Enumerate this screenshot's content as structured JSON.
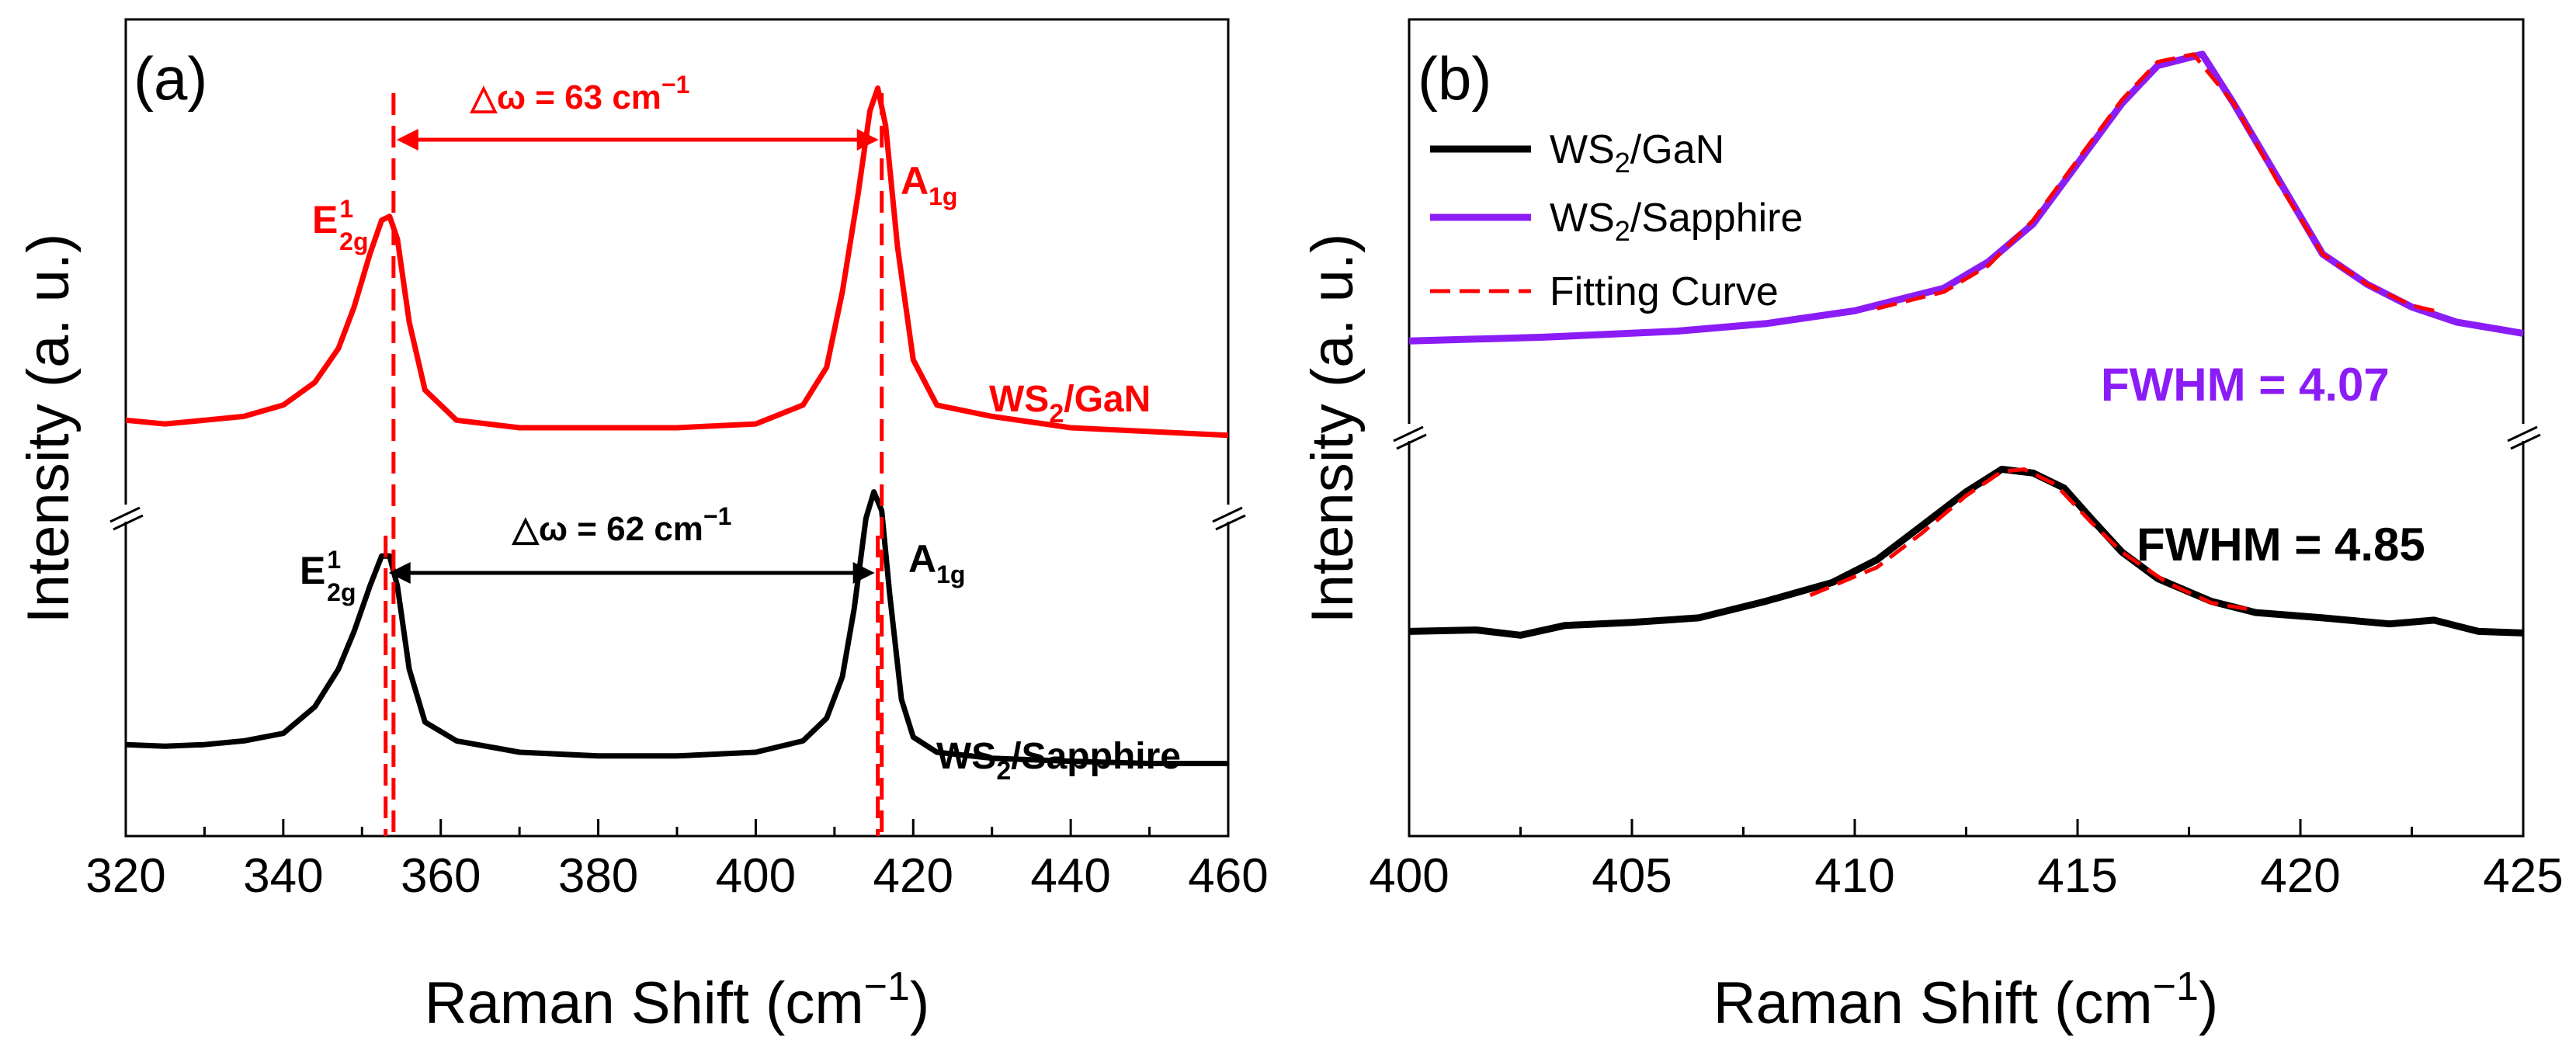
{
  "colors": {
    "gan": "#ff0000",
    "sapphire_a": "#000000",
    "gan_b": "#000000",
    "sapphire_b": "#8b1cf6",
    "fit": "#ff0000",
    "axis": "#000000"
  },
  "chart_data": [
    {
      "panel_label": "(a)",
      "type": "line",
      "xlabel": "Raman Shift (cm",
      "xlabel_sup": "−1",
      "xlabel_close": ")",
      "ylabel": "Intensity (a. u.)",
      "xlim": [
        320,
        460
      ],
      "ylim": [
        0,
        10
      ],
      "xticks": [
        "320",
        "340",
        "360",
        "380",
        "400",
        "420",
        "440",
        "460"
      ],
      "axis_break_y": 4.4,
      "series": [
        {
          "name": "WS2/GaN",
          "label_main": "WS",
          "label_sub": "2",
          "label_tail": "/GaN",
          "color_key": "gan",
          "x": [
            320,
            325,
            330,
            335,
            340,
            344,
            347,
            349,
            351,
            352.5,
            353.5,
            354.5,
            356,
            358,
            362,
            370,
            380,
            390,
            400,
            406,
            409,
            411,
            413,
            414.5,
            415.5,
            416.5,
            418,
            420,
            423,
            430,
            440,
            450,
            460
          ],
          "y": [
            5.1,
            5.05,
            5.1,
            5.15,
            5.3,
            5.6,
            6.05,
            6.6,
            7.3,
            7.75,
            7.8,
            7.5,
            6.4,
            5.5,
            5.1,
            5.0,
            5.0,
            5.0,
            5.05,
            5.3,
            5.8,
            6.8,
            8.1,
            9.2,
            9.5,
            9.0,
            7.4,
            5.9,
            5.3,
            5.15,
            5.0,
            4.95,
            4.9
          ]
        },
        {
          "name": "WS2/Sapphire",
          "label_main": "WS",
          "label_sub": "2",
          "label_tail": "/Sapphire",
          "color_key": "sapphire_a",
          "x": [
            320,
            325,
            330,
            335,
            340,
            344,
            347,
            349,
            351,
            352.5,
            353.5,
            354.5,
            356,
            358,
            362,
            370,
            380,
            390,
            400,
            406,
            409,
            411,
            412.5,
            414,
            415,
            416,
            417,
            418.5,
            420,
            423,
            430,
            440,
            450,
            460
          ],
          "y": [
            0.8,
            0.78,
            0.8,
            0.85,
            0.95,
            1.3,
            1.8,
            2.3,
            2.9,
            3.3,
            3.3,
            2.9,
            1.8,
            1.1,
            0.85,
            0.7,
            0.65,
            0.65,
            0.7,
            0.85,
            1.15,
            1.7,
            2.6,
            3.8,
            4.15,
            3.9,
            2.8,
            1.4,
            0.9,
            0.7,
            0.62,
            0.58,
            0.55,
            0.55
          ]
        }
      ],
      "annotations": {
        "gan": {
          "e_peak_x": 354,
          "a_peak_x": 416,
          "e_main": "E",
          "e_sup": "1",
          "e_sub": "2g",
          "a_main": "A",
          "a_sub": "1g",
          "delta": "△ω = 63 cm",
          "delta_sup": "−1"
        },
        "sapphire": {
          "e_peak_x": 353,
          "a_peak_x": 415.5,
          "e_main": "E",
          "e_sup": "1",
          "e_sub": "2g",
          "a_main": "A",
          "a_sub": "1g",
          "delta": "△ω = 62 cm",
          "delta_sup": "−1"
        }
      }
    },
    {
      "panel_label": "(b)",
      "type": "line",
      "xlabel": "Raman Shift (cm",
      "xlabel_sup": "−1",
      "xlabel_close": ")",
      "ylabel": "Intensity (a. u.)",
      "xlim": [
        400,
        425
      ],
      "ylim": [
        0,
        10
      ],
      "xticks": [
        "400",
        "405",
        "410",
        "415",
        "420",
        "425"
      ],
      "axis_break_y": 5.3,
      "legend": [
        {
          "main": "WS",
          "sub": "2",
          "tail": "/GaN",
          "color_key": "gan_b",
          "style": "solid"
        },
        {
          "main": "WS",
          "sub": "2",
          "tail": "/Sapphire",
          "color_key": "sapphire_b",
          "style": "solid"
        },
        {
          "main": "Fitting Curve",
          "sub": "",
          "tail": "",
          "color_key": "fit",
          "style": "dashed"
        }
      ],
      "fwhm_sapphire": "FWHM = 4.07",
      "fwhm_gan": "FWHM = 4.85",
      "series": [
        {
          "name": "WS2/Sapphire",
          "color_key": "sapphire_b",
          "x": [
            400,
            403,
            406,
            408,
            410,
            412,
            413,
            414,
            415,
            416,
            416.8,
            417.8,
            418.5,
            419.5,
            420.5,
            421.5,
            422.5,
            423.5,
            424.5,
            425
          ],
          "y": [
            6.15,
            6.2,
            6.28,
            6.38,
            6.55,
            6.85,
            7.2,
            7.7,
            8.5,
            9.3,
            9.8,
            9.95,
            9.3,
            8.3,
            7.3,
            6.9,
            6.6,
            6.4,
            6.3,
            6.25
          ]
        },
        {
          "name": "WS2/GaN",
          "color_key": "gan_b",
          "x": [
            400,
            401.5,
            402.5,
            403.5,
            405,
            406.5,
            408,
            409.5,
            410.5,
            411.5,
            412.5,
            413.3,
            414,
            414.7,
            415.3,
            416,
            416.8,
            418,
            419,
            420.5,
            422,
            423,
            424,
            425
          ],
          "y": [
            2.3,
            2.32,
            2.25,
            2.38,
            2.42,
            2.48,
            2.7,
            2.95,
            3.25,
            3.7,
            4.15,
            4.45,
            4.4,
            4.2,
            3.8,
            3.35,
            3.0,
            2.7,
            2.55,
            2.48,
            2.4,
            2.45,
            2.3,
            2.28
          ]
        },
        {
          "name": "Fit-Sapphire",
          "color_key": "fit",
          "style": "dashed",
          "x": [
            410.5,
            412,
            413,
            414,
            415,
            416,
            416.8,
            417.6,
            418.5,
            419.5,
            420.5,
            421.5,
            422.5,
            423
          ],
          "y": [
            6.58,
            6.8,
            7.15,
            7.75,
            8.55,
            9.35,
            9.85,
            9.95,
            9.3,
            8.25,
            7.3,
            6.9,
            6.62,
            6.55
          ]
        },
        {
          "name": "Fit-GaN",
          "color_key": "fit",
          "style": "dashed",
          "x": [
            409,
            410.5,
            411.5,
            412.5,
            413.3,
            413.8,
            414.5,
            415.3,
            416,
            417,
            418,
            418.8
          ],
          "y": [
            2.78,
            3.15,
            3.6,
            4.1,
            4.42,
            4.45,
            4.25,
            3.75,
            3.35,
            2.95,
            2.68,
            2.6
          ]
        }
      ]
    }
  ]
}
